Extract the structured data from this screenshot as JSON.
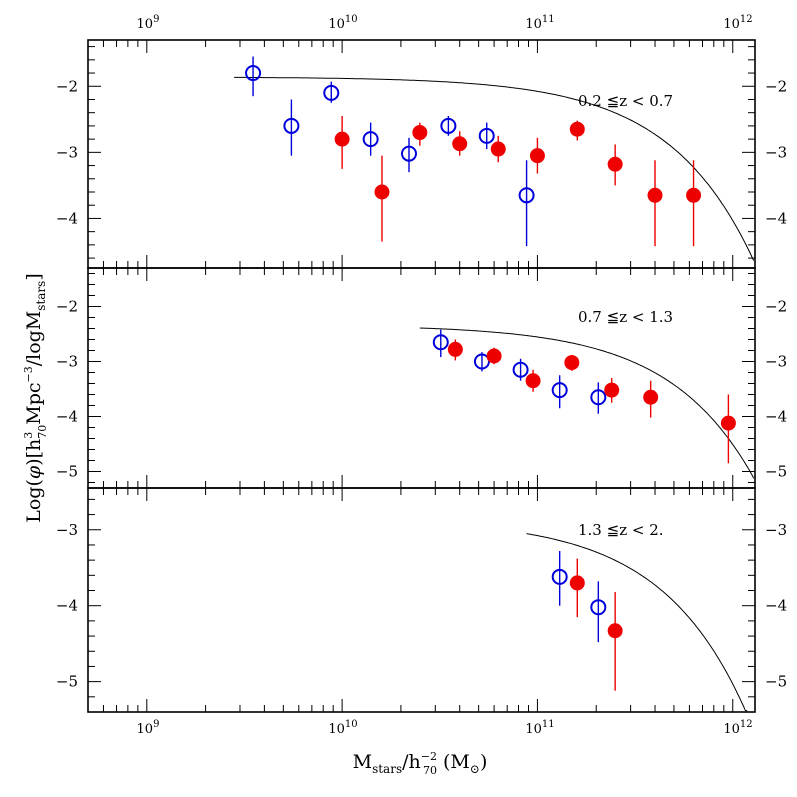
{
  "chart_data": {
    "type": "scatter",
    "xscale": "log",
    "xlim": [
      500000000.0,
      1300000000000.0
    ],
    "xticks": [
      {
        "value": 1000000000.0,
        "base": "10",
        "exp": "9"
      },
      {
        "value": 10000000000.0,
        "base": "10",
        "exp": "10"
      },
      {
        "value": 100000000000.0,
        "base": "10",
        "exp": "11"
      },
      {
        "value": 1000000000000.0,
        "base": "10",
        "exp": "12"
      }
    ],
    "xlabel": {
      "m": "M",
      "stars": "stars",
      "slash": "/h",
      "exp": "−2",
      "sub": "70",
      "unit": " (M",
      "sun": "⊙",
      "close": ")"
    },
    "ylabel": {
      "log": "Log(",
      "phi": "φ",
      "open": ")[h",
      "exp3": "3",
      "sub70": "70",
      "mpc": "Mpc",
      "expm3": "−3",
      "slashlog": "/logM",
      "stars": "stars",
      "close": "]"
    },
    "legend_note": "open blue circles and filled red circles: two datasets",
    "panels": [
      {
        "label": "0.2 ≦z < 0.7",
        "ylim": [
          -4.75,
          -1.3
        ],
        "yticks": [
          -2,
          -3,
          -4
        ],
        "ytick_labels": [
          "−2",
          "−3",
          "−4"
        ],
        "open_blue": [
          {
            "x": 3500000000.0,
            "y": -1.8,
            "ylo": -2.15,
            "yhi": -1.55
          },
          {
            "x": 5500000000.0,
            "y": -2.6,
            "ylo": -3.05,
            "yhi": -2.2
          },
          {
            "x": 8800000000.0,
            "y": -2.1,
            "ylo": -2.25,
            "yhi": -1.93
          },
          {
            "x": 14000000000.0,
            "y": -2.8,
            "ylo": -3.05,
            "yhi": -2.55
          },
          {
            "x": 22000000000.0,
            "y": -3.02,
            "ylo": -3.3,
            "yhi": -2.78
          },
          {
            "x": 35000000000.0,
            "y": -2.6,
            "ylo": -2.75,
            "yhi": -2.45
          },
          {
            "x": 55000000000.0,
            "y": -2.75,
            "ylo": -2.95,
            "yhi": -2.55
          },
          {
            "x": 88000000000.0,
            "y": -3.65,
            "ylo": -4.42,
            "yhi": -3.12
          }
        ],
        "filled_red": [
          {
            "x": 10000000000.0,
            "y": -2.8,
            "ylo": -3.25,
            "yhi": -2.45
          },
          {
            "x": 16000000000.0,
            "y": -3.6,
            "ylo": -4.35,
            "yhi": -3.05
          },
          {
            "x": 25000000000.0,
            "y": -2.7,
            "ylo": -2.9,
            "yhi": -2.55
          },
          {
            "x": 40000000000.0,
            "y": -2.87,
            "ylo": -3.05,
            "yhi": -2.68
          },
          {
            "x": 63000000000.0,
            "y": -2.95,
            "ylo": -3.15,
            "yhi": -2.75
          },
          {
            "x": 100000000000.0,
            "y": -3.05,
            "ylo": -3.32,
            "yhi": -2.78
          },
          {
            "x": 160000000000.0,
            "y": -2.65,
            "ylo": -2.82,
            "yhi": -2.52
          },
          {
            "x": 250000000000.0,
            "y": -3.18,
            "ylo": -3.5,
            "yhi": -2.88
          },
          {
            "x": 400000000000.0,
            "y": -3.65,
            "ylo": -4.42,
            "yhi": -3.12
          },
          {
            "x": 630000000000.0,
            "y": -3.65,
            "ylo": -4.42,
            "yhi": -3.12
          }
        ],
        "schechter": {
          "phi_star": 0.006,
          "m_star": 200000000000.0,
          "alpha": -1.0,
          "xmin": 2800000000.0
        }
      },
      {
        "label": "0.7 ≦z < 1.3",
        "ylim": [
          -5.3,
          -1.3
        ],
        "yticks": [
          -2,
          -3,
          -4,
          -5
        ],
        "ytick_labels": [
          "−2",
          "−3",
          "−4",
          "−5"
        ],
        "open_blue": [
          {
            "x": 32000000000.0,
            "y": -2.65,
            "ylo": -2.92,
            "yhi": -2.42
          },
          {
            "x": 52000000000.0,
            "y": -3.0,
            "ylo": -3.18,
            "yhi": -2.83
          },
          {
            "x": 82000000000.0,
            "y": -3.15,
            "ylo": -3.35,
            "yhi": -2.95
          },
          {
            "x": 130000000000.0,
            "y": -3.52,
            "ylo": -3.85,
            "yhi": -3.25
          },
          {
            "x": 205000000000.0,
            "y": -3.65,
            "ylo": -3.95,
            "yhi": -3.38
          }
        ],
        "filled_red": [
          {
            "x": 38000000000.0,
            "y": -2.78,
            "ylo": -2.98,
            "yhi": -2.6
          },
          {
            "x": 60000000000.0,
            "y": -2.9,
            "ylo": -3.05,
            "yhi": -2.75
          },
          {
            "x": 95000000000.0,
            "y": -3.35,
            "ylo": -3.55,
            "yhi": -3.15
          },
          {
            "x": 150000000000.0,
            "y": -3.02,
            "ylo": -3.17,
            "yhi": -2.88
          },
          {
            "x": 240000000000.0,
            "y": -3.52,
            "ylo": -3.75,
            "yhi": -3.3
          },
          {
            "x": 380000000000.0,
            "y": -3.65,
            "ylo": -4.02,
            "yhi": -3.35
          },
          {
            "x": 950000000000.0,
            "y": -4.12,
            "ylo": -4.85,
            "yhi": -3.6
          }
        ],
        "schechter": {
          "phi_star": 0.002,
          "m_star": 200000000000.0,
          "alpha": -1.0,
          "xmin": 25000000000.0
        }
      },
      {
        "label": "1.3 ≦z < 2.",
        "ylim": [
          -5.4,
          -2.45
        ],
        "yticks": [
          -3,
          -4,
          -5
        ],
        "ytick_labels": [
          "−3",
          "−4",
          "−5"
        ],
        "open_blue": [
          {
            "x": 130000000000.0,
            "y": -3.62,
            "ylo": -4.0,
            "yhi": -3.28
          },
          {
            "x": 205000000000.0,
            "y": -4.02,
            "ylo": -4.48,
            "yhi": -3.68
          }
        ],
        "filled_red": [
          {
            "x": 160000000000.0,
            "y": -3.7,
            "ylo": -4.15,
            "yhi": -3.38
          },
          {
            "x": 250000000000.0,
            "y": -4.33,
            "ylo": -5.12,
            "yhi": -3.82
          }
        ],
        "schechter": {
          "phi_star": 0.0006,
          "m_star": 200000000000.0,
          "alpha": -1.0,
          "xmin": 88000000000.0
        }
      }
    ]
  },
  "colors": {
    "open_blue": "#0000dd",
    "filled_red": "#ee0000",
    "curve": "#000000",
    "axes": "#000000"
  }
}
